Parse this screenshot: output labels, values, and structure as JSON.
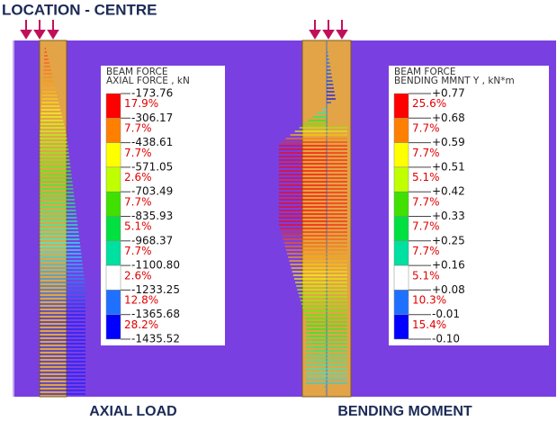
{
  "header": {
    "title": "LOCATION - CENTRE"
  },
  "panels": [
    {
      "caption": "AXIAL LOAD",
      "legend": {
        "title": "BEAM FORCE",
        "subtitle": "AXIAL FORCE , kN",
        "values": [
          "-173.76",
          "-306.17",
          "-438.61",
          "-571.05",
          "-703.49",
          "-835.93",
          "-968.37",
          "-1100.80",
          "-1233.25",
          "-1365.68",
          "-1435.52"
        ],
        "percentages": [
          "17.9%",
          "7.7%",
          "7.7%",
          "2.6%",
          "7.7%",
          "5.1%",
          "7.7%",
          "2.6%",
          "12.8%",
          "28.2%"
        ],
        "colors": [
          "#ff0000",
          "#ff8000",
          "#ffff00",
          "#c0ff00",
          "#40e000",
          "#00e040",
          "#00e0a0",
          "#ffffff",
          "#2070ff",
          "#0000ff"
        ]
      }
    },
    {
      "caption": "BENDING MOMENT",
      "legend": {
        "title": "BEAM FORCE",
        "subtitle": "BENDING MMNT Y , kN*m",
        "values": [
          "+0.77",
          "+0.68",
          "+0.59",
          "+0.51",
          "+0.42",
          "+0.33",
          "+0.25",
          "+0.16",
          "+0.08",
          "-0.01",
          "-0.10"
        ],
        "percentages": [
          "25.6%",
          "7.7%",
          "7.7%",
          "5.1%",
          "7.7%",
          "7.7%",
          "7.7%",
          "5.1%",
          "10.3%",
          "15.4%"
        ],
        "colors": [
          "#ff0000",
          "#ff8000",
          "#ffff00",
          "#c0ff00",
          "#40e000",
          "#00e040",
          "#00e0a0",
          "#ffffff",
          "#2070ff",
          "#0000ff"
        ]
      }
    }
  ]
}
